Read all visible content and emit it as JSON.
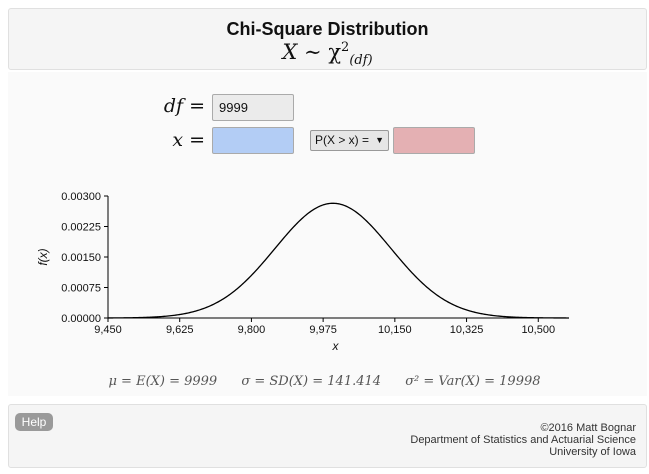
{
  "header": {
    "title": "Chi-Square Distribution",
    "formula_lhs": "X",
    "formula_rel": "∼",
    "formula_chi": "χ",
    "formula_sup": "2",
    "formula_sub": "(df)"
  },
  "inputs": {
    "df_label": "df =",
    "df_value": "9999",
    "x_label": "x =",
    "x_value": "",
    "x_color": "#b3cdf5",
    "prob_select": "P(X > x) =",
    "prob_result": "",
    "prob_color": "#e4b0b3"
  },
  "chart_data": {
    "type": "line",
    "title": "",
    "xlabel": "x",
    "ylabel": "f(x)",
    "xlim": [
      9450,
      10575
    ],
    "ylim": [
      0,
      0.003
    ],
    "x_ticks": [
      "9,450",
      "9,625",
      "9,800",
      "9,975",
      "10,150",
      "10,325",
      "10,500"
    ],
    "y_ticks": [
      "0.00300",
      "0.00225",
      "0.00150",
      "0.00075",
      "0.00000"
    ],
    "series": [
      {
        "distribution": "chi-square",
        "df": 9999,
        "mean": 9999,
        "sd": 141.414,
        "peak_y": 0.00282
      }
    ],
    "grid": false
  },
  "stats": {
    "mu": "μ = E(X) = 9999",
    "sigma": "σ = SD(X) = 141.414",
    "var": "σ² = Var(X) = 19998"
  },
  "footer": {
    "help_label": "Help",
    "copyright": "©2016 Matt Bognar",
    "department": "Department of Statistics and Actuarial Science",
    "university": "University of Iowa"
  }
}
